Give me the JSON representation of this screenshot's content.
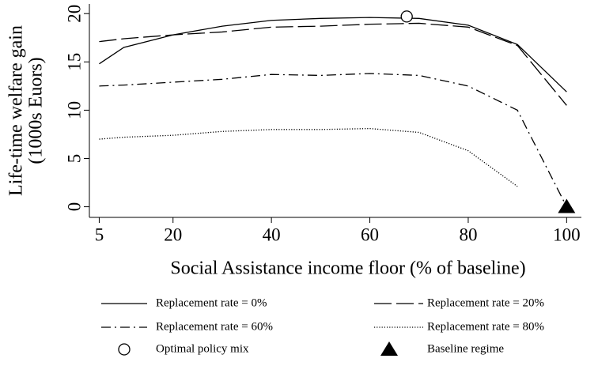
{
  "chart_data": {
    "type": "line",
    "x_label": "Social Assistance income floor (% of baseline)",
    "y_label": [
      "Life-time welfare gain",
      "(1000s Euors)"
    ],
    "x": [
      5,
      10,
      20,
      30,
      40,
      50,
      60,
      70,
      80,
      90,
      100
    ],
    "series": [
      {
        "name": "Replacement rate = 0%",
        "color": "#000000",
        "dash": "solid",
        "values": [
          14.8,
          16.5,
          17.8,
          18.7,
          19.3,
          19.5,
          19.6,
          19.5,
          18.8,
          16.8,
          11.9
        ]
      },
      {
        "name": "Replacement rate = 20%",
        "color": "#000000",
        "dash": "dashed",
        "values": [
          17.1,
          17.4,
          17.8,
          18.1,
          18.6,
          18.7,
          18.9,
          19.0,
          18.6,
          16.7,
          10.5
        ]
      },
      {
        "name": "Replacement rate = 60%",
        "color": "#000000",
        "dash": "dashdot",
        "values": [
          12.5,
          12.6,
          12.9,
          13.2,
          13.7,
          13.6,
          13.8,
          13.6,
          12.5,
          10.0,
          0
        ]
      },
      {
        "name": "Replacement rate = 80%",
        "color": "#000000",
        "dash": "dotted",
        "values": [
          7.0,
          7.2,
          7.4,
          7.8,
          8.0,
          8.0,
          8.1,
          7.7,
          5.8,
          2.1,
          null
        ]
      }
    ],
    "points": [
      {
        "name": "Optimal policy mix",
        "marker": "circle",
        "x": 67.5,
        "y": 19.7
      },
      {
        "name": "Baseline regime",
        "marker": "triangle",
        "x": 100,
        "y": 0
      }
    ],
    "xlim": [
      3,
      103
    ],
    "ylim": [
      -1.1,
      21
    ],
    "xticks": [
      5,
      20,
      40,
      60,
      80,
      100
    ],
    "yticks": [
      0,
      5,
      10,
      15,
      20
    ]
  }
}
